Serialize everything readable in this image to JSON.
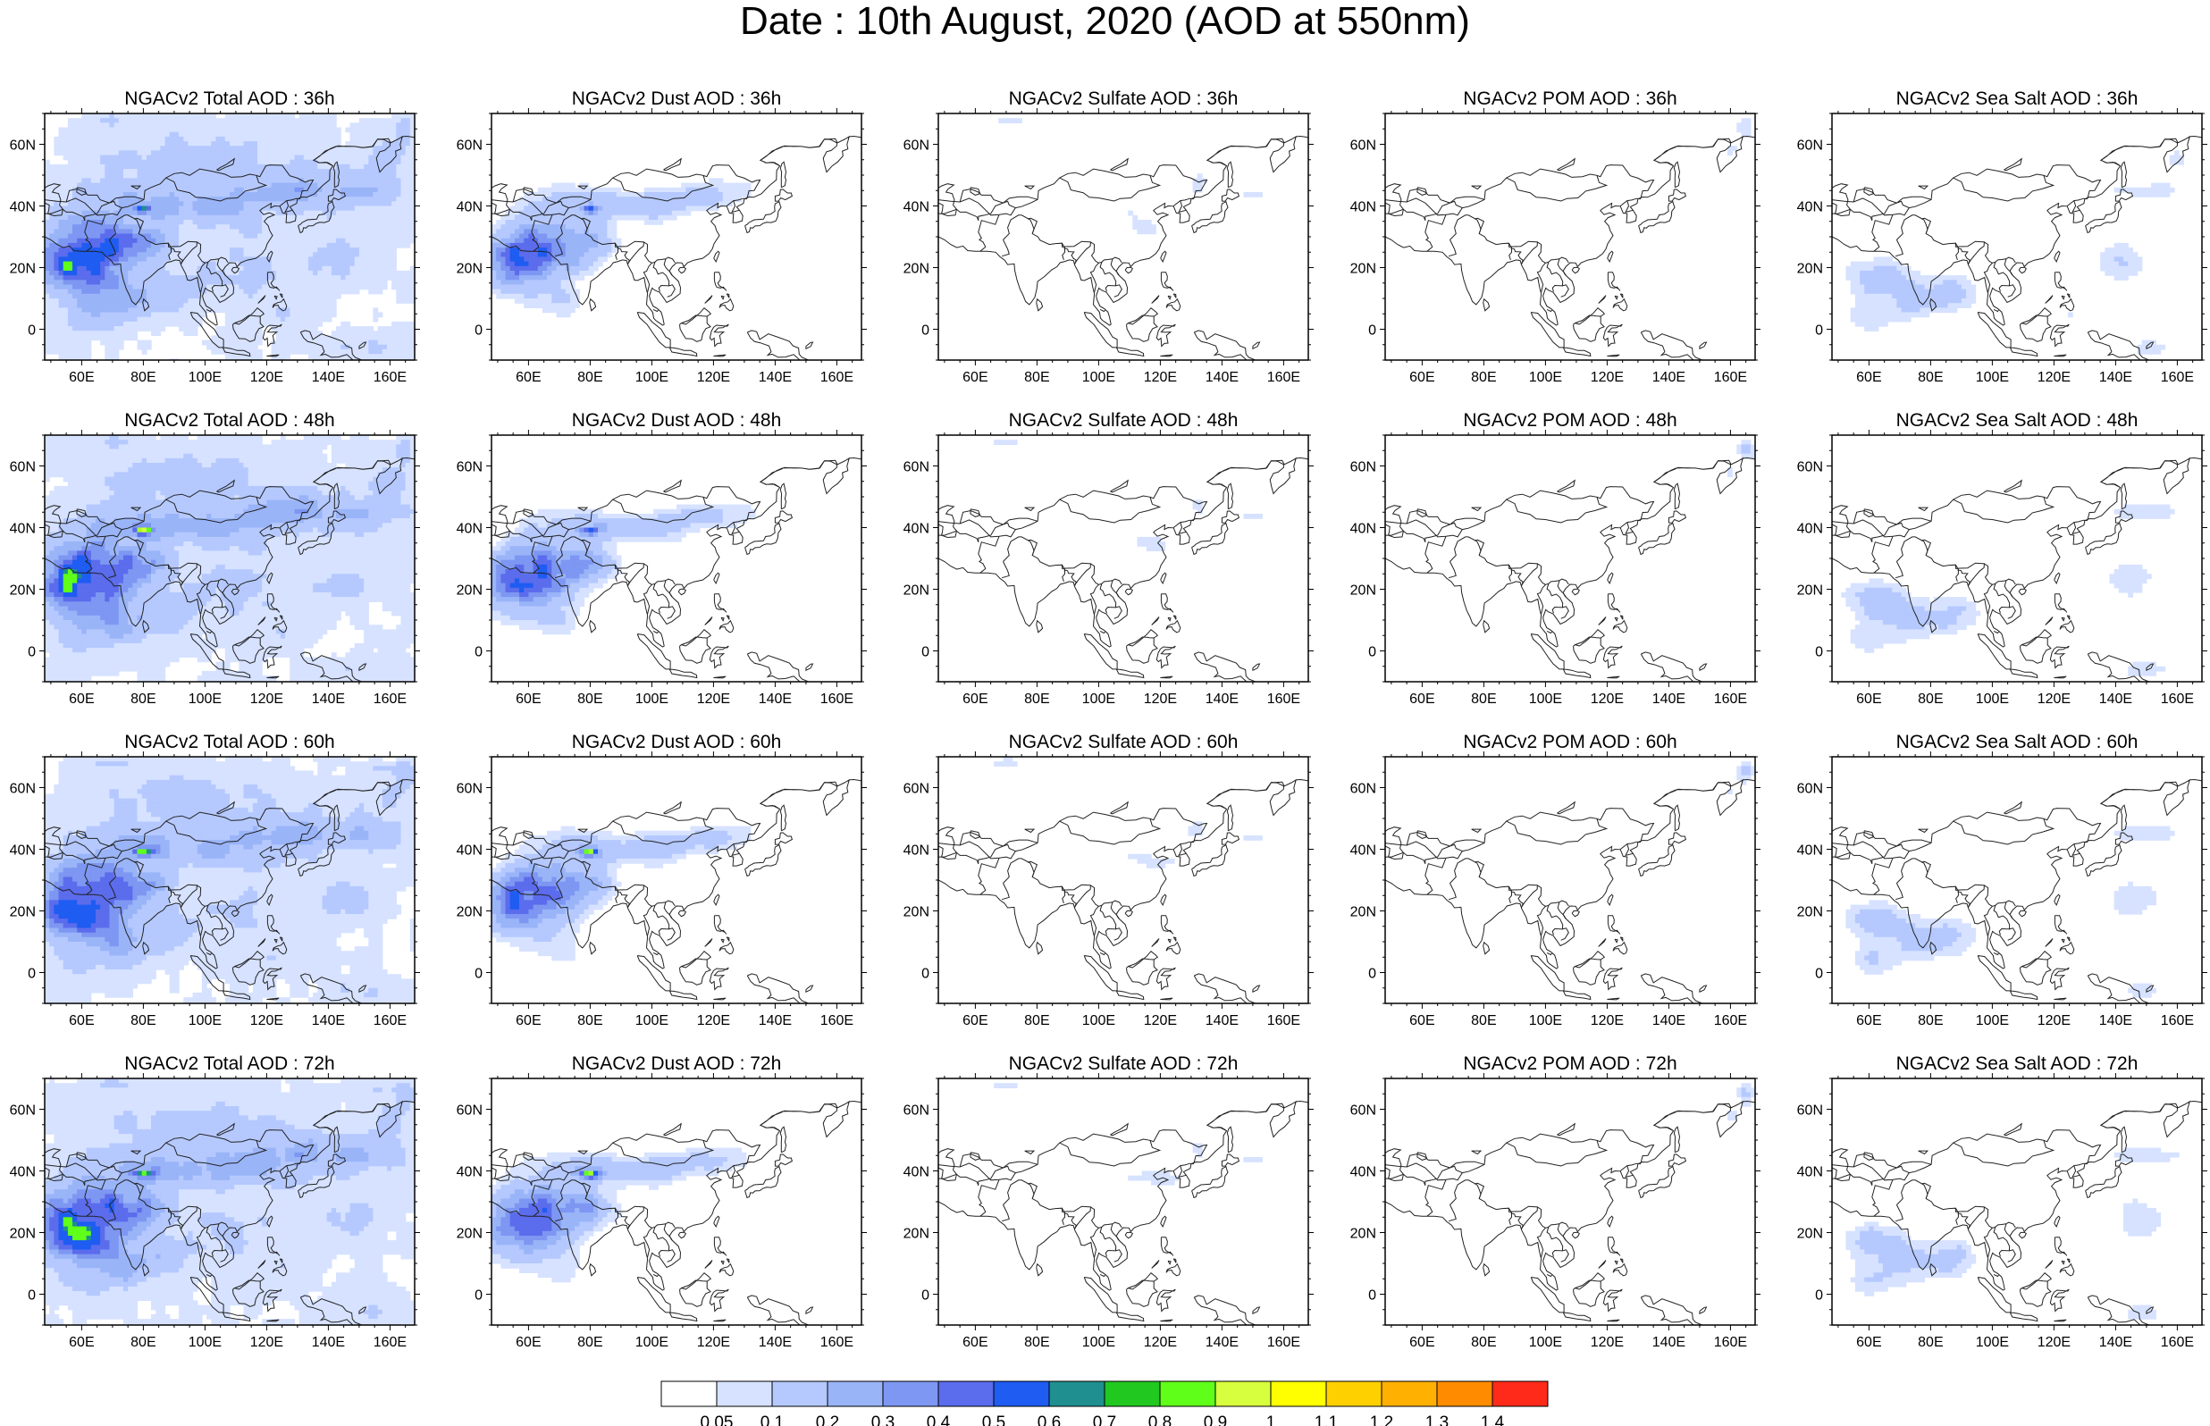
{
  "title": "Date : 10th August, 2020 (AOD at 550nm)",
  "map_extent": {
    "lon_min": 48,
    "lon_max": 168,
    "lat_min": -10,
    "lat_max": 70
  },
  "lon_ticks": [
    {
      "value": 60,
      "label": "60E"
    },
    {
      "value": 80,
      "label": "80E"
    },
    {
      "value": 100,
      "label": "100E"
    },
    {
      "value": 120,
      "label": "120E"
    },
    {
      "value": 140,
      "label": "140E"
    },
    {
      "value": 160,
      "label": "160E"
    }
  ],
  "lat_ticks": [
    {
      "value": 0,
      "label": "0"
    },
    {
      "value": 20,
      "label": "20N"
    },
    {
      "value": 40,
      "label": "40N"
    },
    {
      "value": 60,
      "label": "60N"
    }
  ],
  "panels": [
    {
      "title": "NGACv2 Total AOD : 36h",
      "species": "total"
    },
    {
      "title": "NGACv2 Dust AOD : 36h",
      "species": "dust"
    },
    {
      "title": "NGACv2 Sulfate AOD : 36h",
      "species": "sulfate"
    },
    {
      "title": "NGACv2 POM AOD : 36h",
      "species": "pom"
    },
    {
      "title": "NGACv2 Sea Salt AOD : 36h",
      "species": "seasalt"
    },
    {
      "title": "NGACv2 Total AOD : 48h",
      "species": "total"
    },
    {
      "title": "NGACv2 Dust AOD : 48h",
      "species": "dust"
    },
    {
      "title": "NGACv2 Sulfate AOD : 48h",
      "species": "sulfate"
    },
    {
      "title": "NGACv2 POM AOD : 48h",
      "species": "pom"
    },
    {
      "title": "NGACv2 Sea Salt AOD : 48h",
      "species": "seasalt"
    },
    {
      "title": "NGACv2 Total AOD : 60h",
      "species": "total"
    },
    {
      "title": "NGACv2 Dust AOD : 60h",
      "species": "dust"
    },
    {
      "title": "NGACv2 Sulfate AOD : 60h",
      "species": "sulfate"
    },
    {
      "title": "NGACv2 POM AOD : 60h",
      "species": "pom"
    },
    {
      "title": "NGACv2 Sea Salt AOD : 60h",
      "species": "seasalt"
    },
    {
      "title": "NGACv2 Total AOD : 72h",
      "species": "total"
    },
    {
      "title": "NGACv2 Dust AOD : 72h",
      "species": "dust"
    },
    {
      "title": "NGACv2 Sulfate AOD : 72h",
      "species": "sulfate"
    },
    {
      "title": "NGACv2 POM AOD : 72h",
      "species": "pom"
    },
    {
      "title": "NGACv2 Sea Salt  AOD : 72h",
      "species": "seasalt"
    }
  ],
  "colorbar": {
    "colors": [
      "#ffffff",
      "#d6e2ff",
      "#b5c9ff",
      "#9ab4f8",
      "#7d97f2",
      "#5b6cec",
      "#1e5cf2",
      "#1f8f8f",
      "#20c820",
      "#60ff1a",
      "#a5ff2a",
      "#d8ff3d",
      "#ffff00",
      "#ffd000",
      "#ffb000",
      "#ff8c00",
      "#ff6a00",
      "#ff2a1a"
    ],
    "labels": [
      "0.05",
      "0.1",
      "0.2",
      "0.3",
      "0.4",
      "0.5",
      "0.6",
      "0.7",
      "0.8",
      "0.9",
      "1",
      "1.1",
      "1.2",
      "1.3",
      "1.4"
    ]
  }
}
